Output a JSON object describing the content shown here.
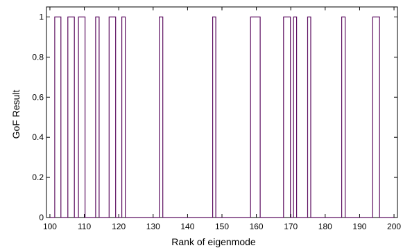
{
  "chart_data": {
    "type": "line",
    "step": true,
    "xlabel": "Rank of eigenmode",
    "ylabel": "GoF Result",
    "xlim": [
      99,
      201
    ],
    "ylim": [
      0,
      1.05
    ],
    "xticks": [
      100,
      110,
      120,
      130,
      140,
      150,
      160,
      170,
      180,
      190,
      200
    ],
    "yticks": [
      0,
      0.2,
      0.4,
      0.6,
      0.8,
      1
    ],
    "ytick_labels": [
      "0",
      "0.2",
      "0.4",
      "0.6",
      "0.8",
      "1"
    ],
    "grid": false,
    "line_color": "#5b0c5f",
    "pulses": [
      [
        101.4,
        103.2
      ],
      [
        105.2,
        107.1
      ],
      [
        108.3,
        110.2
      ],
      [
        113.3,
        114.3
      ],
      [
        117.2,
        119.1
      ],
      [
        120.9,
        121.9
      ],
      [
        131.8,
        132.8
      ],
      [
        147.3,
        148.2
      ],
      [
        158.3,
        161.1
      ],
      [
        167.9,
        169.9
      ],
      [
        170.8,
        171.7
      ],
      [
        174.9,
        175.8
      ],
      [
        184.8,
        185.8
      ],
      [
        193.8,
        195.8
      ]
    ]
  }
}
